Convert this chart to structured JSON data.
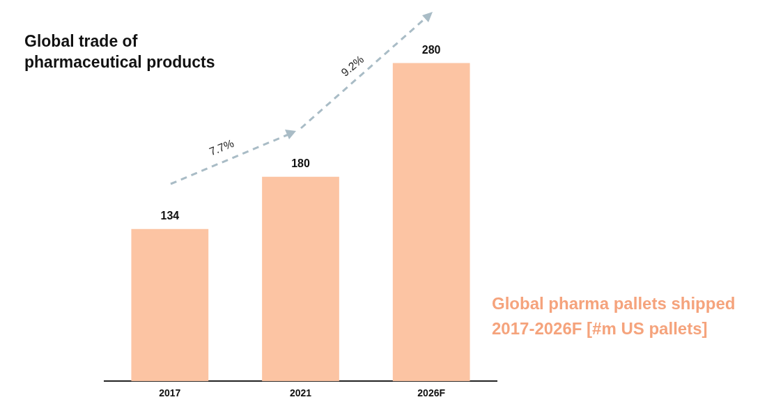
{
  "chart_data": {
    "type": "bar",
    "title": "Global trade of pharmaceutical products",
    "subtitle": "Global pharma pallets shipped 2017-2026F [#m US pallets]",
    "categories": [
      "2017",
      "2021",
      "2026F"
    ],
    "values": [
      134,
      180,
      280
    ],
    "color": "#fcc4a3",
    "data_labels": true,
    "legend": false,
    "annotations": [
      "7.7%",
      "9.2%"
    ]
  }
}
